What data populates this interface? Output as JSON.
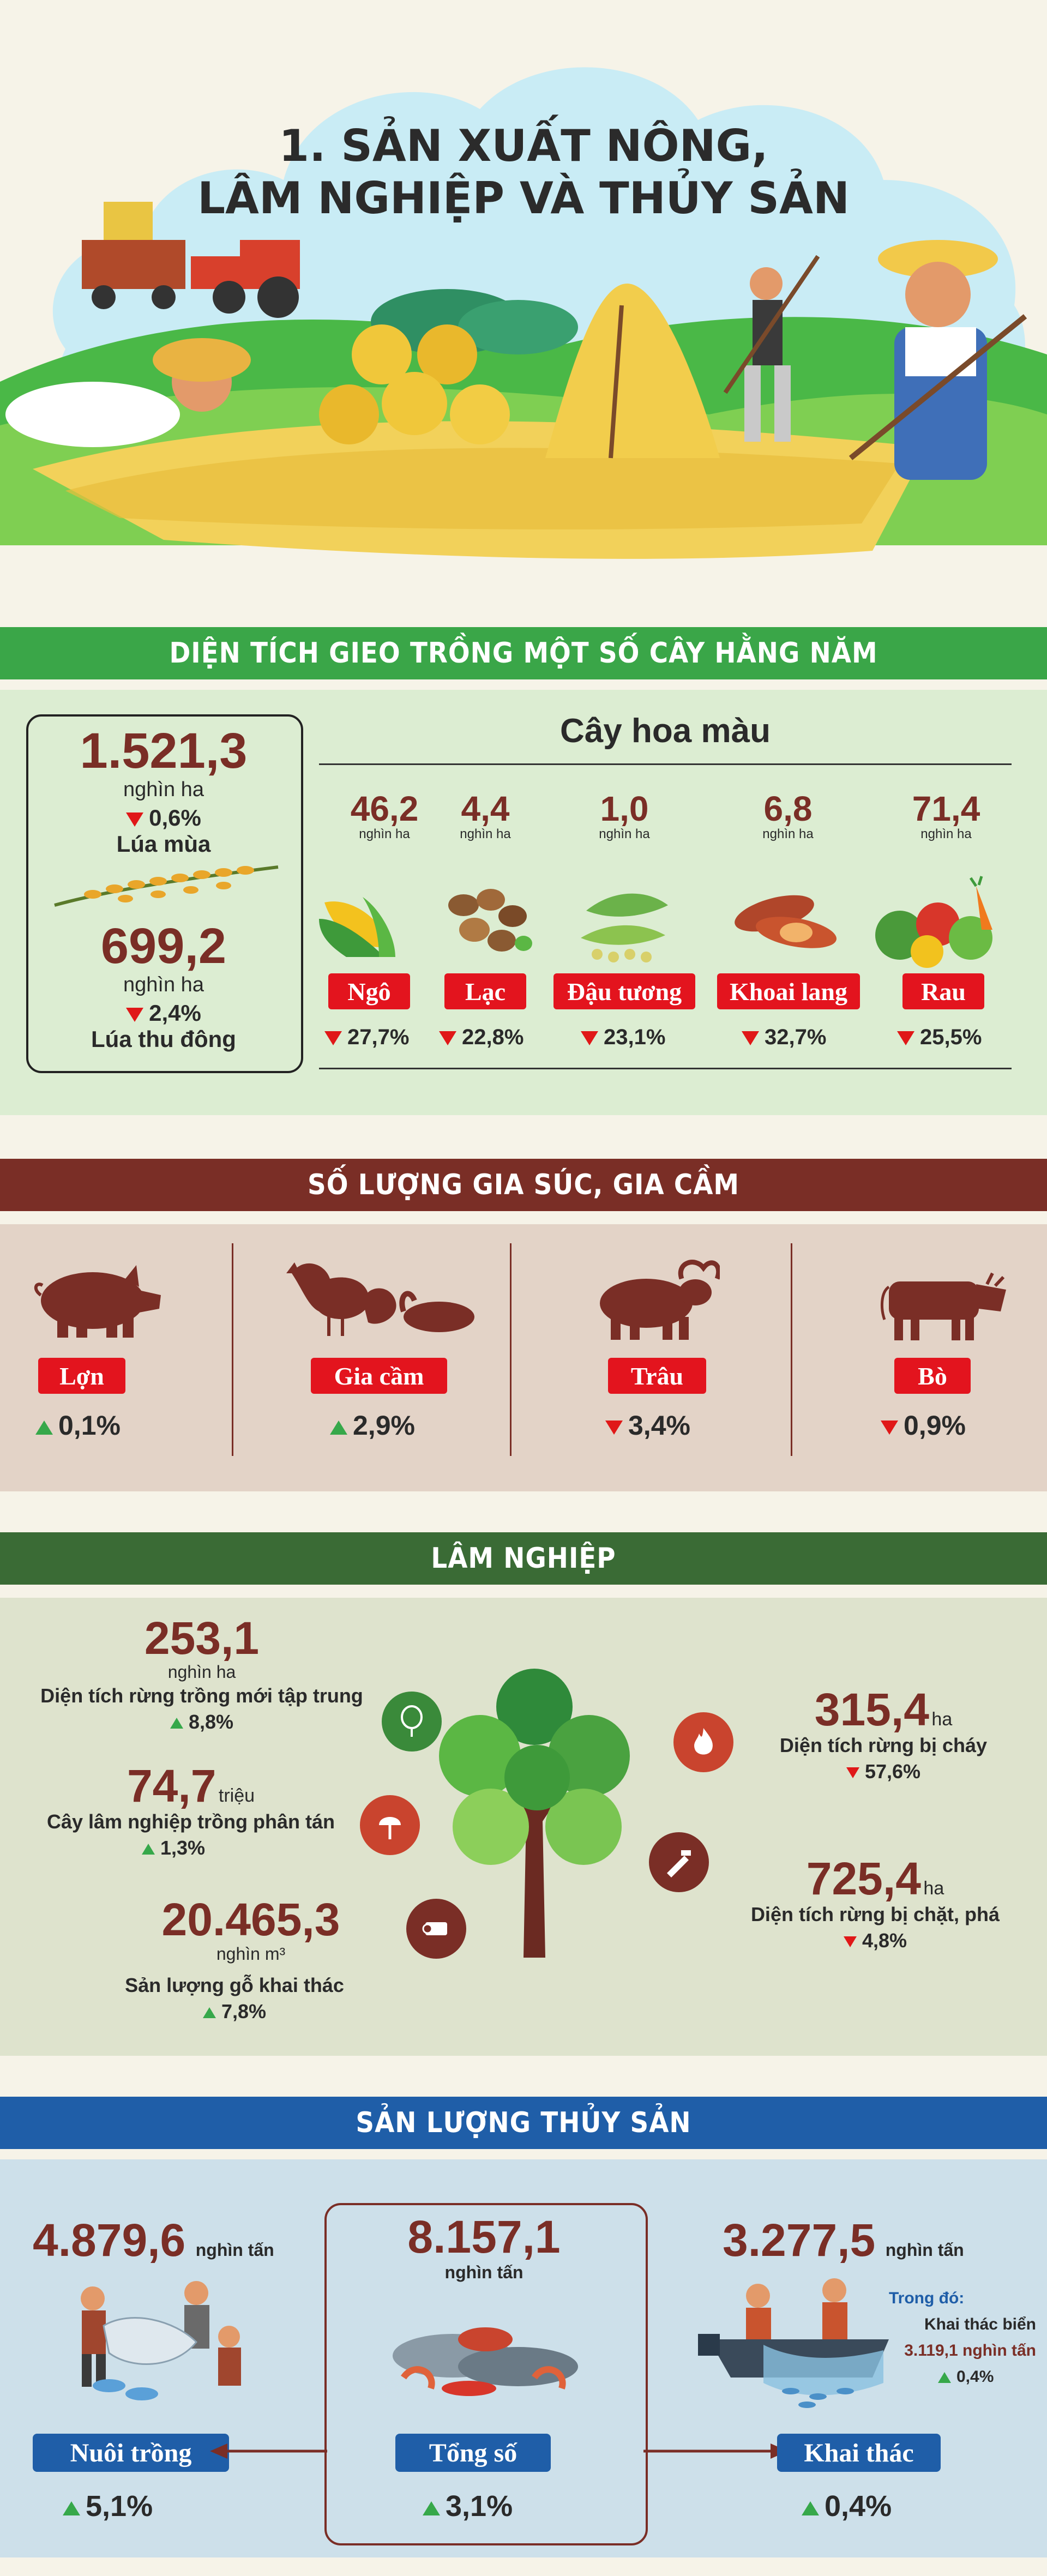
{
  "header": {
    "title_line1": "1. SẢN XUẤT NÔNG,",
    "title_line2": "LÂM NGHIỆP VÀ THỦY SẢN"
  },
  "colors": {
    "green": "#3aa648",
    "brown": "#7a2e26",
    "forest": "#3a6b35",
    "blue": "#1f5ea8",
    "red": "#e3141e"
  },
  "crops": {
    "banner": "DIỆN TÍCH GIEO TRỒNG MỘT SỐ CÂY HẰNG NĂM",
    "rice": {
      "mua_value": "1.521,3",
      "mua_unit": "nghìn ha",
      "mua_change": "0,6%",
      "mua_name": "Lúa mùa",
      "td_value": "699,2",
      "td_unit": "nghìn ha",
      "td_change": "2,4%",
      "td_name": "Lúa thu đông"
    },
    "hoa_mau_title": "Cây hoa màu",
    "items": [
      {
        "value": "46,2",
        "unit": "nghìn ha",
        "name": "Ngô",
        "change": "27,7%",
        "icon": "corn-icon"
      },
      {
        "value": "4,4",
        "unit": "nghìn ha",
        "name": "Lạc",
        "change": "22,8%",
        "icon": "peanut-icon"
      },
      {
        "value": "1,0",
        "unit": "nghìn ha",
        "name": "Đậu tương",
        "change": "23,1%",
        "icon": "soybean-icon"
      },
      {
        "value": "6,8",
        "unit": "nghìn ha",
        "name": "Khoai lang",
        "change": "32,7%",
        "icon": "sweet-potato-icon"
      },
      {
        "value": "71,4",
        "unit": "nghìn ha",
        "name": "Rau",
        "change": "25,5%",
        "icon": "vegetables-icon"
      }
    ]
  },
  "livestock": {
    "banner": "SỐ LƯỢNG GIA SÚC, GIA CẦM",
    "items": [
      {
        "name": "Lợn",
        "change": "0,1%",
        "direction": "up",
        "icon": "pig-icon"
      },
      {
        "name": "Gia cầm",
        "change": "2,9%",
        "direction": "up",
        "icon": "poultry-icon"
      },
      {
        "name": "Trâu",
        "change": "3,4%",
        "direction": "down",
        "icon": "buffalo-icon"
      },
      {
        "name": "Bò",
        "change": "0,9%",
        "direction": "down",
        "icon": "cow-icon"
      }
    ]
  },
  "forestry": {
    "banner": "LÂM NGHIỆP",
    "planted": {
      "value": "253,1",
      "unit": "nghìn ha",
      "label": "Diện tích rừng trồng mới tập trung",
      "change": "8,8%"
    },
    "scattered": {
      "value": "74,7",
      "unit": "triệu",
      "label": "Cây lâm nghiệp trồng phân tán",
      "change": "1,3%"
    },
    "timber": {
      "value": "20.465,3",
      "unit": "nghìn m³",
      "label": "Sản lượng gỗ khai thác",
      "change": "7,8%"
    },
    "burned": {
      "value": "315,4",
      "unit": "ha",
      "label": "Diện tích rừng bị cháy",
      "change": "57,6%"
    },
    "cleared": {
      "value": "725,4",
      "unit": "ha",
      "label": "Diện tích rừng bị chặt, phá",
      "change": "4,8%"
    }
  },
  "fishery": {
    "banner": "SẢN LƯỢNG THỦY SẢN",
    "aqua": {
      "value": "4.879,6",
      "unit": "nghìn tấn",
      "name": "Nuôi trồng",
      "change": "5,1%"
    },
    "total": {
      "value": "8.157,1",
      "unit": "nghìn tấn",
      "name": "Tổng số",
      "change": "3,1%"
    },
    "catch": {
      "value": "3.277,5",
      "unit": "nghìn tấn",
      "name": "Khai thác",
      "change": "0,4%",
      "of_which": "Trong đó:",
      "sea_label": "Khai thác biển",
      "sea_value": "3.119,1 nghìn tấn",
      "sea_change": "0,4%"
    }
  }
}
